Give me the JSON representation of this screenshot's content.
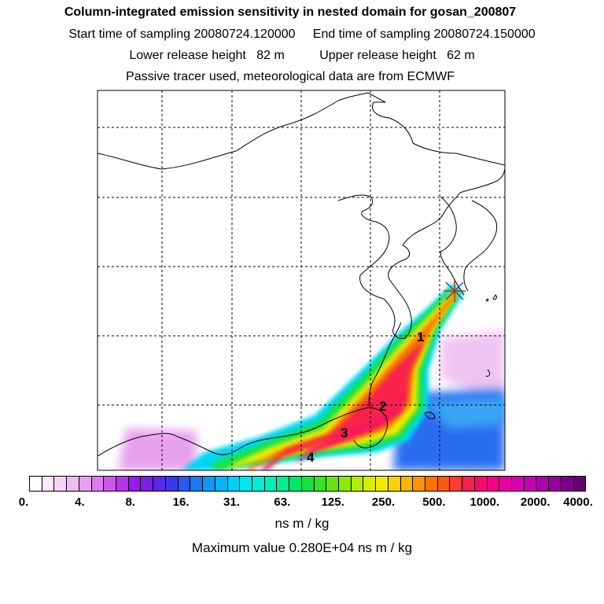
{
  "header": {
    "title": "Column-integrated emission sensitivity in nested domain for gosan_200807",
    "sampling": "Start time of sampling 20080724.120000     End time of sampling 20080724.150000",
    "release": "Lower release height   82 m          Upper release height   62 m",
    "note": "Passive tracer used, meteorological data are from ECMWF"
  },
  "map": {
    "markers": [
      "1",
      "2",
      "3",
      "4"
    ],
    "release_site": "star-marker"
  },
  "colorbar": {
    "tick_labels": [
      "0.",
      "4.",
      "8.",
      "16.",
      "31.",
      "63.",
      "125.",
      "250.",
      "500.",
      "1000.",
      "2000.",
      "4000."
    ],
    "colors": [
      "#ffffff",
      "#fbe8fb",
      "#f6d2f6",
      "#f0bcf0",
      "#e7a0ee",
      "#da7ceb",
      "#cc58ea",
      "#b634ea",
      "#9a18ea",
      "#7a1ee8",
      "#5a28e8",
      "#3a38ea",
      "#2a58ee",
      "#1c78f0",
      "#1296f4",
      "#08b4f6",
      "#00d0f6",
      "#00e6ea",
      "#00eed6",
      "#00eeb8",
      "#00ec92",
      "#00e86a",
      "#12e242",
      "#36e41e",
      "#62e60e",
      "#8aea08",
      "#b2ec06",
      "#d6ee04",
      "#f2ea02",
      "#fad200",
      "#fcb400",
      "#fc9400",
      "#fa7400",
      "#f85a14",
      "#f83c30",
      "#f8204c",
      "#f80a6a",
      "#f20088",
      "#e800a0",
      "#d800b0",
      "#c400b4",
      "#ae00ac",
      "#96009a",
      "#7c0084",
      "#620070"
    ],
    "units": "ns m / kg"
  },
  "footer": {
    "max_value": "Maximum value  0.280E+04 ns m / kg"
  }
}
